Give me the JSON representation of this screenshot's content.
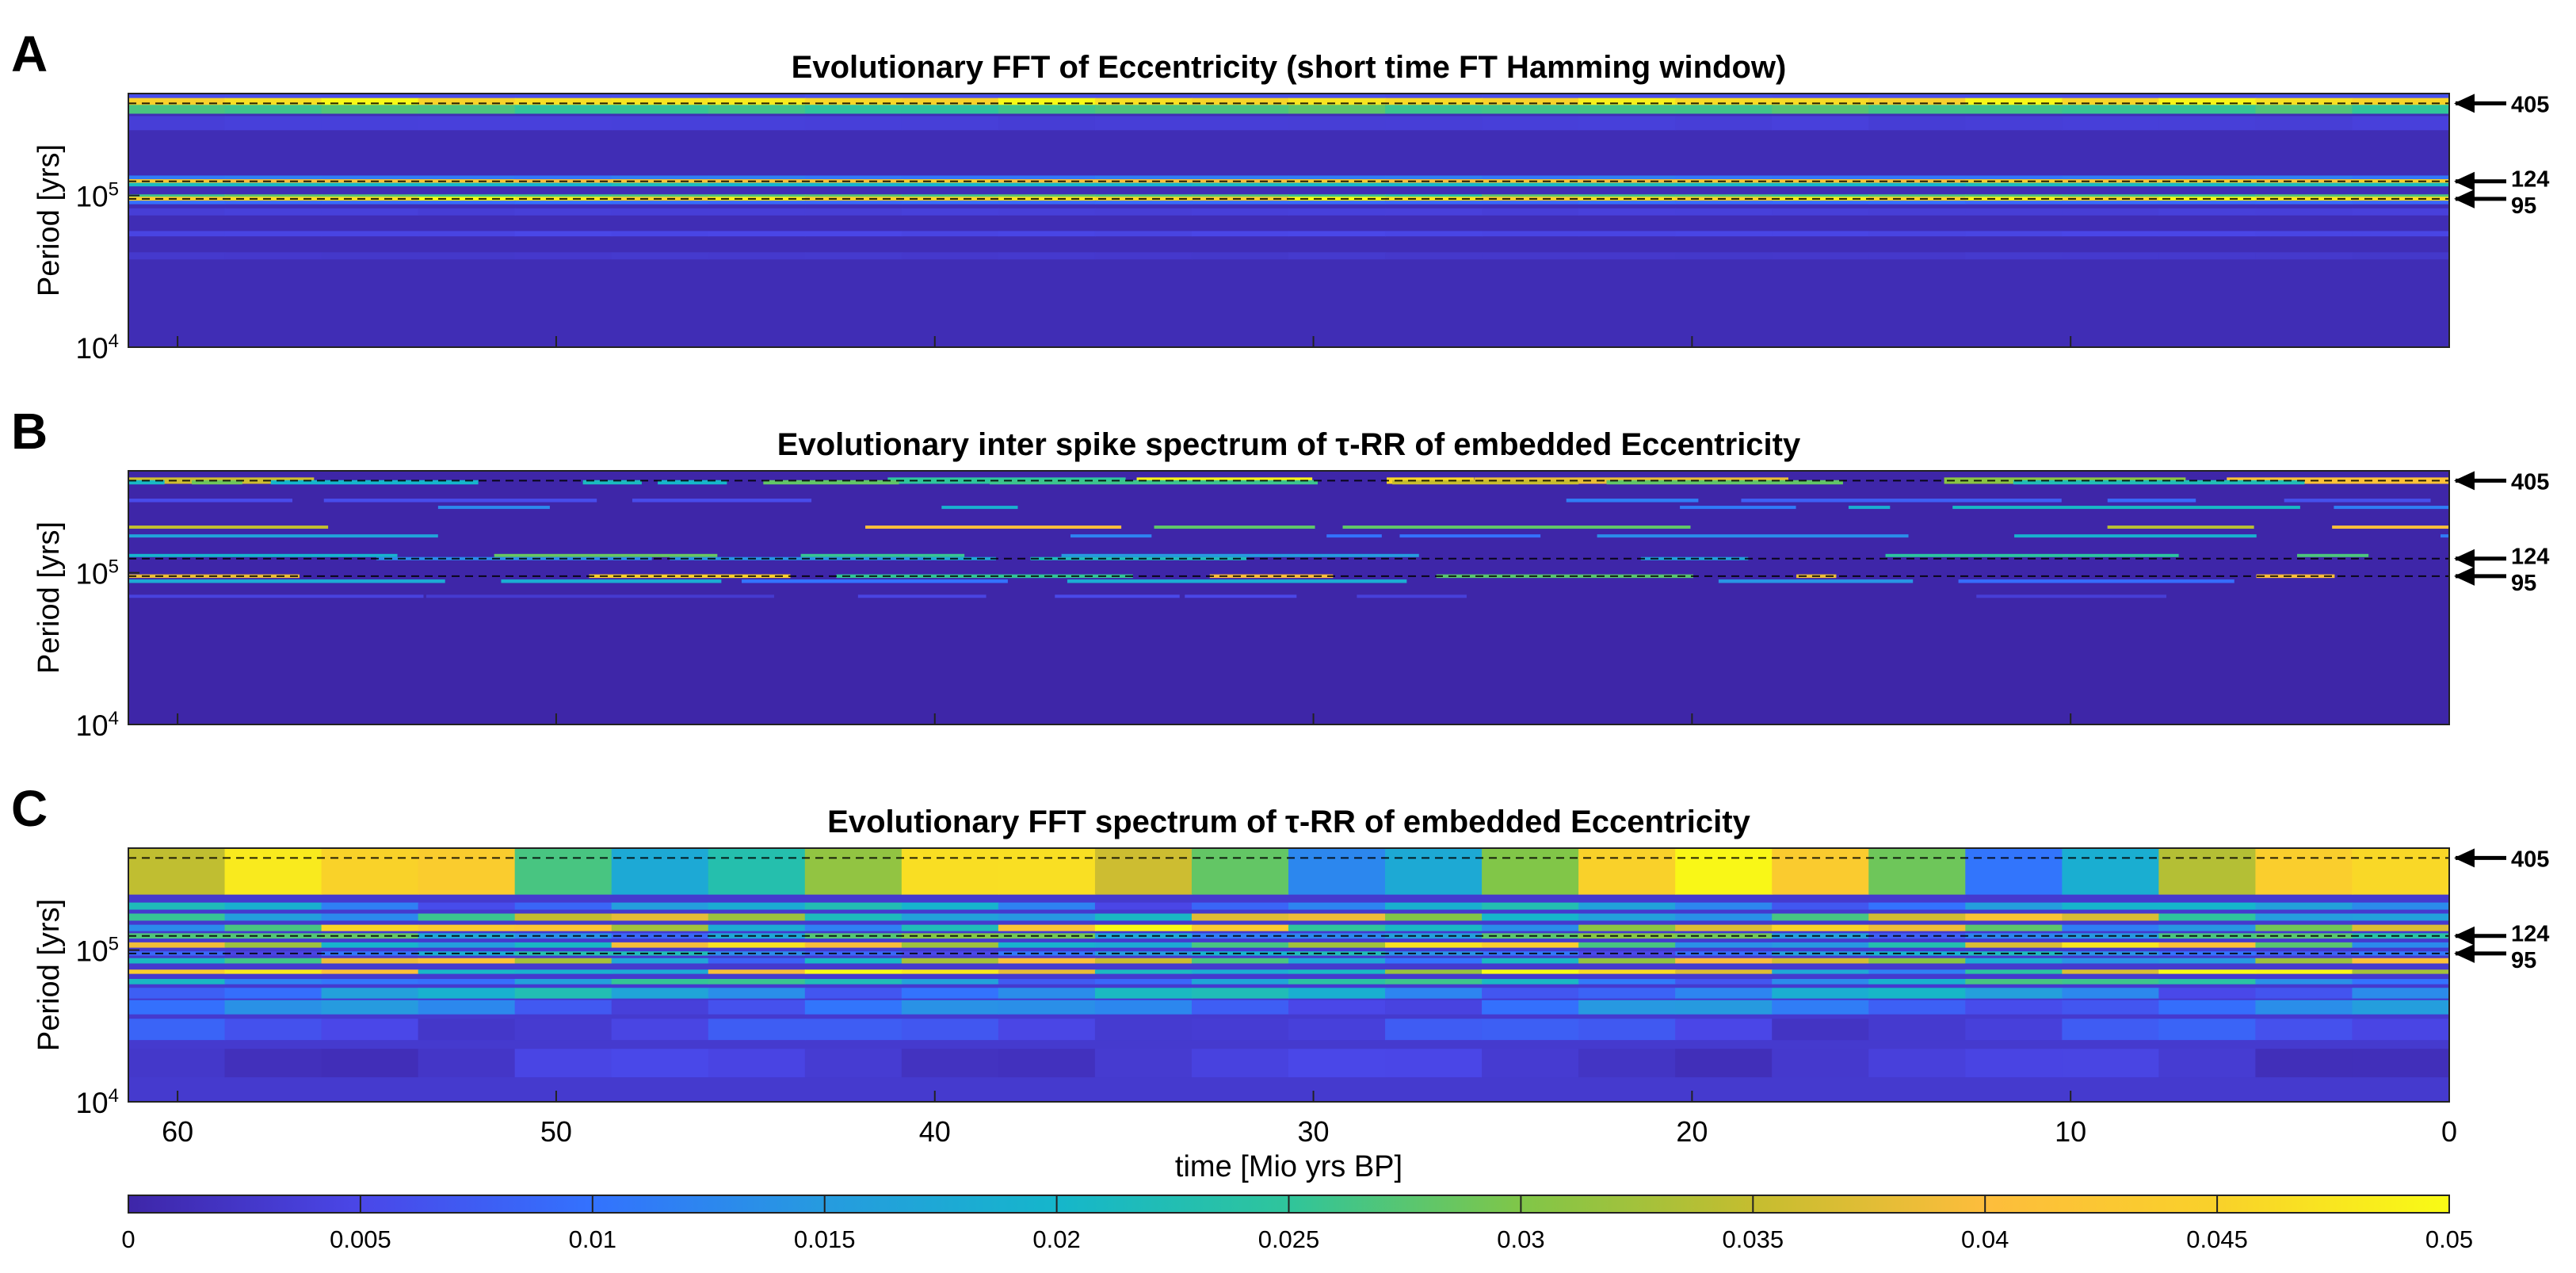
{
  "chart_data": {
    "type": "heatmap",
    "x_label": "time [Mio yrs BP]",
    "x_ticks": [
      "60",
      "50",
      "40",
      "30",
      "20",
      "10",
      "0"
    ],
    "x_tick_values": [
      60,
      50,
      40,
      30,
      20,
      10,
      0
    ],
    "xlim": [
      61.3,
      0
    ],
    "ylim": [
      10000,
      470000
    ],
    "y_scale": "log",
    "y_label": "Period [yrs]",
    "y_ticks": [
      {
        "base": "10",
        "exp": "4",
        "value": 10000
      },
      {
        "base": "10",
        "exp": "5",
        "value": 100000
      }
    ],
    "reference_periods_kyr": [
      {
        "label": "405",
        "value": 405000
      },
      {
        "label": "124",
        "value": 124000
      },
      {
        "label": "95",
        "value": 95000
      }
    ],
    "colorbar": {
      "range": [
        0,
        0.05
      ],
      "ticks": [
        "0",
        "0.005",
        "0.01",
        "0.015",
        "0.02",
        "0.025",
        "0.03",
        "0.035",
        "0.04",
        "0.045",
        "0.05"
      ],
      "colormap": [
        "#3e26a8",
        "#4a47e8",
        "#3372fe",
        "#269bdf",
        "#15b6cb",
        "#2fc59b",
        "#80c648",
        "#c5bd2f",
        "#fdbd3c",
        "#f9d12a",
        "#f9fb15"
      ]
    },
    "panels": [
      {
        "letter": "A",
        "title": "Evolutionary FFT of Eccentricity (short time FT Hamming window)",
        "background": 0.001,
        "bands": [
          {
            "period": 460000,
            "value": 0.006,
            "width": 0.035
          },
          {
            "period": 405000,
            "value": 0.05,
            "width": 0.03
          },
          {
            "period": 370000,
            "value": 0.028,
            "width": 0.025
          },
          {
            "period": 300000,
            "value": 0.004,
            "width": 0.04
          },
          {
            "period": 130000,
            "value": 0.012,
            "width": 0.015
          },
          {
            "period": 124000,
            "value": 0.045,
            "width": 0.012
          },
          {
            "period": 118000,
            "value": 0.022,
            "width": 0.01
          },
          {
            "period": 99000,
            "value": 0.028,
            "width": 0.01
          },
          {
            "period": 95000,
            "value": 0.05,
            "width": 0.012
          },
          {
            "period": 90000,
            "value": 0.01,
            "width": 0.01
          },
          {
            "period": 78000,
            "value": 0.004,
            "width": 0.02
          },
          {
            "period": 56000,
            "value": 0.005,
            "width": 0.015
          },
          {
            "period": 40000,
            "value": 0.003,
            "width": 0.02
          }
        ]
      },
      {
        "letter": "B",
        "title": "Evolutionary inter spike spectrum of τ-RR of embedded Eccentricity",
        "background": 0.0,
        "bands": [
          {
            "period": 405000,
            "value": 0.05,
            "width": 0.018
          },
          {
            "period": 395000,
            "value": 0.04,
            "width": 0.012
          },
          {
            "period": 300000,
            "value": 0.012,
            "width": 0.01
          },
          {
            "period": 270000,
            "value": 0.022,
            "width": 0.008
          },
          {
            "period": 200000,
            "value": 0.045,
            "width": 0.008
          },
          {
            "period": 175000,
            "value": 0.02,
            "width": 0.008
          },
          {
            "period": 130000,
            "value": 0.03,
            "width": 0.008
          },
          {
            "period": 124000,
            "value": 0.025,
            "width": 0.008
          },
          {
            "period": 95000,
            "value": 0.05,
            "width": 0.01
          },
          {
            "period": 88000,
            "value": 0.02,
            "width": 0.01
          },
          {
            "period": 70000,
            "value": 0.006,
            "width": 0.008
          }
        ]
      },
      {
        "letter": "C",
        "title": "Evolutionary FFT spectrum of τ-RR of embedded Eccentricity",
        "background": 0.003,
        "bands": [
          {
            "period": 420000,
            "value": 0.05,
            "width": 0.22
          },
          {
            "period": 195000,
            "value": 0.022,
            "width": 0.02
          },
          {
            "period": 165000,
            "value": 0.04,
            "width": 0.02
          },
          {
            "period": 140000,
            "value": 0.048,
            "width": 0.018
          },
          {
            "period": 124000,
            "value": 0.03,
            "width": 0.015
          },
          {
            "period": 108000,
            "value": 0.045,
            "width": 0.015
          },
          {
            "period": 95000,
            "value": 0.022,
            "width": 0.012
          },
          {
            "period": 85000,
            "value": 0.04,
            "width": 0.015
          },
          {
            "period": 72000,
            "value": 0.05,
            "width": 0.012
          },
          {
            "period": 62000,
            "value": 0.028,
            "width": 0.015
          },
          {
            "period": 52000,
            "value": 0.022,
            "width": 0.03
          },
          {
            "period": 42000,
            "value": 0.015,
            "width": 0.04
          },
          {
            "period": 30000,
            "value": 0.008,
            "width": 0.06
          },
          {
            "period": 18000,
            "value": 0.005,
            "width": 0.08
          }
        ]
      }
    ]
  }
}
